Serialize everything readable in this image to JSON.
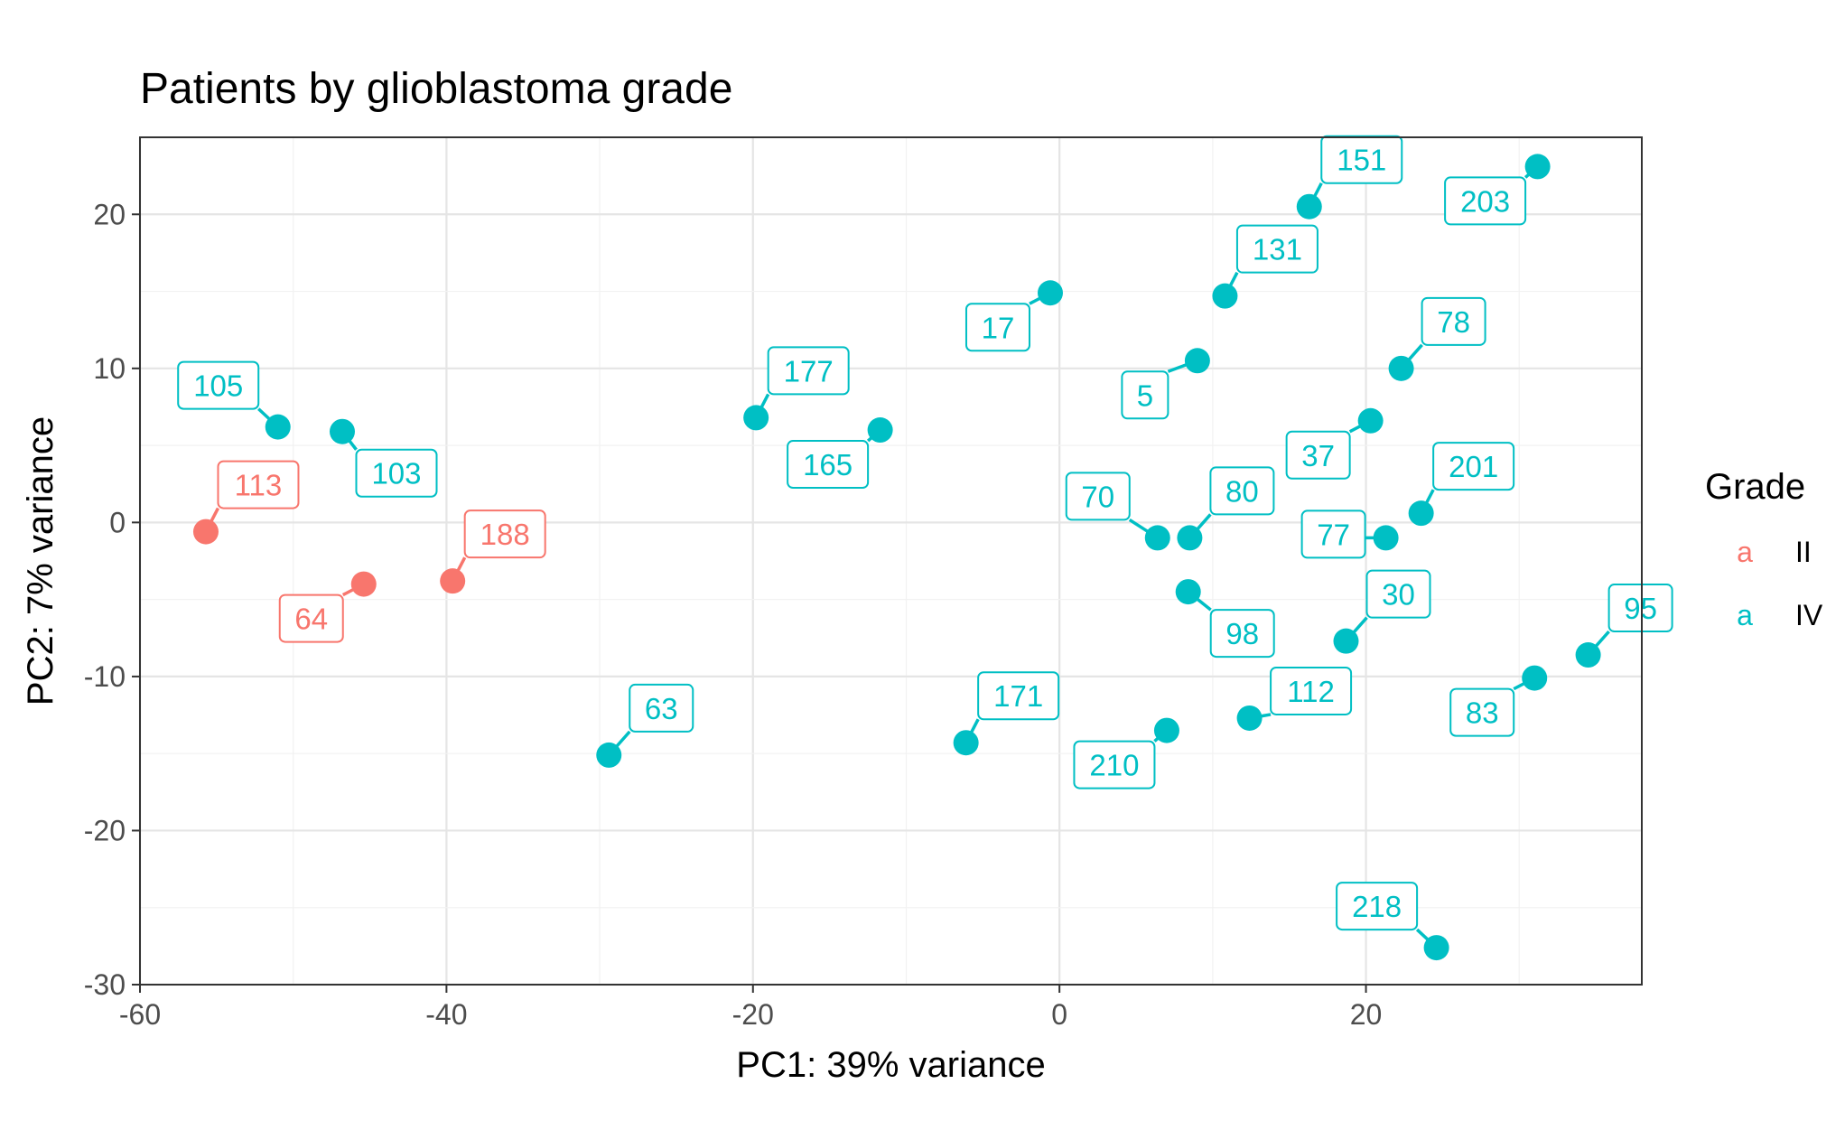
{
  "chart_data": {
    "type": "scatter",
    "title": "Patients by glioblastoma grade",
    "xlabel": "PC1: 39% variance",
    "ylabel": "PC2: 7% variance",
    "xlim": [
      -60,
      38
    ],
    "ylim": [
      -30,
      25
    ],
    "x_ticks": [
      -60,
      -40,
      -20,
      0,
      20
    ],
    "y_ticks": [
      -30,
      -20,
      -10,
      0,
      10,
      20
    ],
    "grid": true,
    "legend": {
      "title": "Grade",
      "position": "right",
      "key_glyph": "a",
      "entries": [
        {
          "name": "II",
          "color": "#F8766D"
        },
        {
          "name": "IV",
          "color": "#00BFC4"
        }
      ]
    },
    "series": [
      {
        "name": "II",
        "color": "#F8766D",
        "points": [
          {
            "label": "113",
            "x": -55.7,
            "y": -0.6,
            "label_pos": "above-right"
          },
          {
            "label": "64",
            "x": -45.4,
            "y": -4.0,
            "label_pos": "below-left"
          },
          {
            "label": "188",
            "x": -39.6,
            "y": -3.8,
            "label_pos": "above-right"
          }
        ]
      },
      {
        "name": "IV",
        "color": "#00BFC4",
        "points": [
          {
            "label": "105",
            "x": -51.0,
            "y": 6.2,
            "label_pos": "above-left"
          },
          {
            "label": "103",
            "x": -46.8,
            "y": 5.9,
            "label_pos": "below-right"
          },
          {
            "label": "177",
            "x": -19.8,
            "y": 6.8,
            "label_pos": "above-right"
          },
          {
            "label": "165",
            "x": -11.7,
            "y": 6.0,
            "label_pos": "below-left"
          },
          {
            "label": "63",
            "x": -29.4,
            "y": -15.1,
            "label_pos": "above-right"
          },
          {
            "label": "17",
            "x": -0.6,
            "y": 14.9,
            "label_pos": "below-left"
          },
          {
            "label": "171",
            "x": -6.1,
            "y": -14.3,
            "label_pos": "above-right"
          },
          {
            "label": "151",
            "x": 16.3,
            "y": 20.5,
            "label_pos": "above-right"
          },
          {
            "label": "203",
            "x": 31.2,
            "y": 23.1,
            "label_pos": "below-left"
          },
          {
            "label": "131",
            "x": 10.8,
            "y": 14.7,
            "label_pos": "above-right"
          },
          {
            "label": "5",
            "x": 9.0,
            "y": 10.5,
            "label_pos": "below-left"
          },
          {
            "label": "78",
            "x": 22.3,
            "y": 10.0,
            "label_pos": "above-right"
          },
          {
            "label": "37",
            "x": 20.3,
            "y": 6.6,
            "label_pos": "below-left"
          },
          {
            "label": "70",
            "x": 6.4,
            "y": -1.0,
            "label_pos": "above-left"
          },
          {
            "label": "80",
            "x": 8.5,
            "y": -1.0,
            "label_pos": "above-right"
          },
          {
            "label": "98",
            "x": 8.4,
            "y": -4.5,
            "label_pos": "below-right"
          },
          {
            "label": "77",
            "x": 21.3,
            "y": -1.0,
            "label_pos": "left"
          },
          {
            "label": "201",
            "x": 23.6,
            "y": 0.6,
            "label_pos": "above-right"
          },
          {
            "label": "30",
            "x": 18.7,
            "y": -7.7,
            "label_pos": "above-right"
          },
          {
            "label": "112",
            "x": 12.4,
            "y": -12.7,
            "label_pos": "right"
          },
          {
            "label": "210",
            "x": 7.0,
            "y": -13.5,
            "label_pos": "below-left"
          },
          {
            "label": "95",
            "x": 34.5,
            "y": -8.6,
            "label_pos": "above-right"
          },
          {
            "label": "83",
            "x": 31.0,
            "y": -10.1,
            "label_pos": "below-left"
          },
          {
            "label": "218",
            "x": 24.6,
            "y": -27.6,
            "label_pos": "above-left"
          }
        ]
      }
    ]
  }
}
